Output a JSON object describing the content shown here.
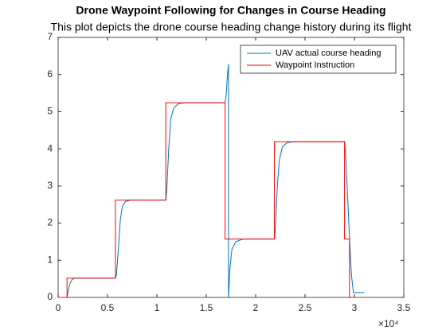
{
  "chart_data": {
    "type": "line",
    "title": "Drone Waypoint Following for Changes in Course Heading",
    "subtitle": "This plot depicts the drone course heading change history during its flight",
    "x_multiplier": "×10⁴",
    "xlim": [
      0,
      35000
    ],
    "xticks": [
      0,
      {
        "value": 5000,
        "label": "0.5"
      },
      {
        "value": 10000,
        "label": "1"
      },
      {
        "value": 15000,
        "label": "1.5"
      },
      {
        "value": 20000,
        "label": "2"
      },
      {
        "value": 25000,
        "label": "2.5"
      },
      {
        "value": 30000,
        "label": "3"
      },
      {
        "value": 35000,
        "label": "3.5"
      }
    ],
    "ylim": [
      0,
      7
    ],
    "yticks": [
      0,
      1,
      2,
      3,
      4,
      5,
      6,
      7
    ],
    "legend": "top-right",
    "series": [
      {
        "name": "UAV actual course heading",
        "color": "#0072bd",
        "x": [
          0,
          900,
          1000,
          1200,
          1400,
          1700,
          5800,
          5900,
          6100,
          6300,
          6500,
          6800,
          7300,
          10900,
          11000,
          11200,
          11400,
          11700,
          12200,
          13000,
          16900,
          17000,
          17150,
          17250,
          17250,
          17400,
          17600,
          18000,
          18700,
          21900,
          22000,
          22200,
          22400,
          22700,
          23200,
          24000,
          29000,
          29100,
          29300,
          29500,
          29700,
          29900,
          31000
        ],
        "values": [
          0,
          0,
          0.15,
          0.38,
          0.48,
          0.52,
          0.52,
          0.6,
          1.3,
          2.1,
          2.45,
          2.58,
          2.62,
          2.62,
          2.9,
          4.0,
          4.8,
          5.1,
          5.22,
          5.24,
          5.24,
          5.4,
          6.0,
          6.28,
          0,
          0.8,
          1.3,
          1.5,
          1.57,
          1.57,
          1.9,
          3.0,
          3.7,
          4.05,
          4.17,
          4.19,
          4.19,
          3.9,
          2.8,
          1.6,
          0.6,
          0.13,
          0.13
        ]
      },
      {
        "name": "Waypoint Instruction",
        "color": "#ff0000",
        "x": [
          0,
          900,
          900,
          5800,
          5800,
          10900,
          10900,
          16900,
          16900,
          21900,
          21900,
          29000,
          29000,
          29500,
          29500,
          30000
        ],
        "values": [
          0,
          0,
          0.52,
          0.52,
          2.62,
          2.62,
          5.24,
          5.24,
          1.57,
          1.57,
          4.19,
          4.19,
          1.57,
          1.57,
          0,
          0
        ]
      }
    ]
  }
}
